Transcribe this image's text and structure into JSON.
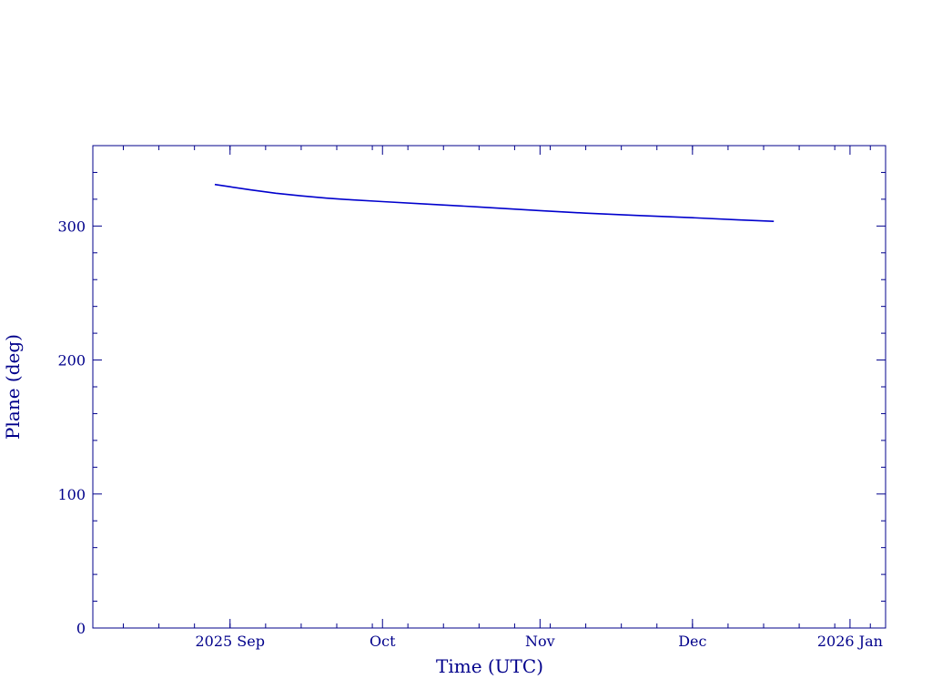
{
  "chart_data": {
    "type": "line",
    "title": "",
    "xlabel": "Time (UTC)",
    "ylabel": "Plane (deg)",
    "xlim": [
      "2025-08-05",
      "2026-01-08"
    ],
    "ylim": [
      0,
      360
    ],
    "grid": false,
    "legend": "none",
    "colors": {
      "axis": "#00008b",
      "line": "#0000cd"
    },
    "x_ticks": [
      {
        "date": "2025-09-01",
        "label": "2025 Sep"
      },
      {
        "date": "2025-10-01",
        "label": "Oct"
      },
      {
        "date": "2025-11-01",
        "label": "Nov"
      },
      {
        "date": "2025-12-01",
        "label": "Dec"
      },
      {
        "date": "2026-01-01",
        "label": "2026 Jan"
      }
    ],
    "y_ticks": [
      {
        "value": 0,
        "label": "0"
      },
      {
        "value": 100,
        "label": "100"
      },
      {
        "value": 200,
        "label": "200"
      },
      {
        "value": 300,
        "label": "300"
      }
    ],
    "series": [
      {
        "x": [
          "2025-08-29",
          "2025-09-01",
          "2025-09-05",
          "2025-09-10",
          "2025-09-15",
          "2025-09-20",
          "2025-09-25",
          "2025-10-01",
          "2025-10-10",
          "2025-10-20",
          "2025-11-01",
          "2025-11-10",
          "2025-11-20",
          "2025-12-01",
          "2025-12-10",
          "2025-12-17"
        ],
        "y": [
          331,
          329.3,
          327,
          324.5,
          322.5,
          320.8,
          319.5,
          318.2,
          316.3,
          314.2,
          311.5,
          309.6,
          307.9,
          306.2,
          304.6,
          303.5
        ]
      }
    ]
  }
}
